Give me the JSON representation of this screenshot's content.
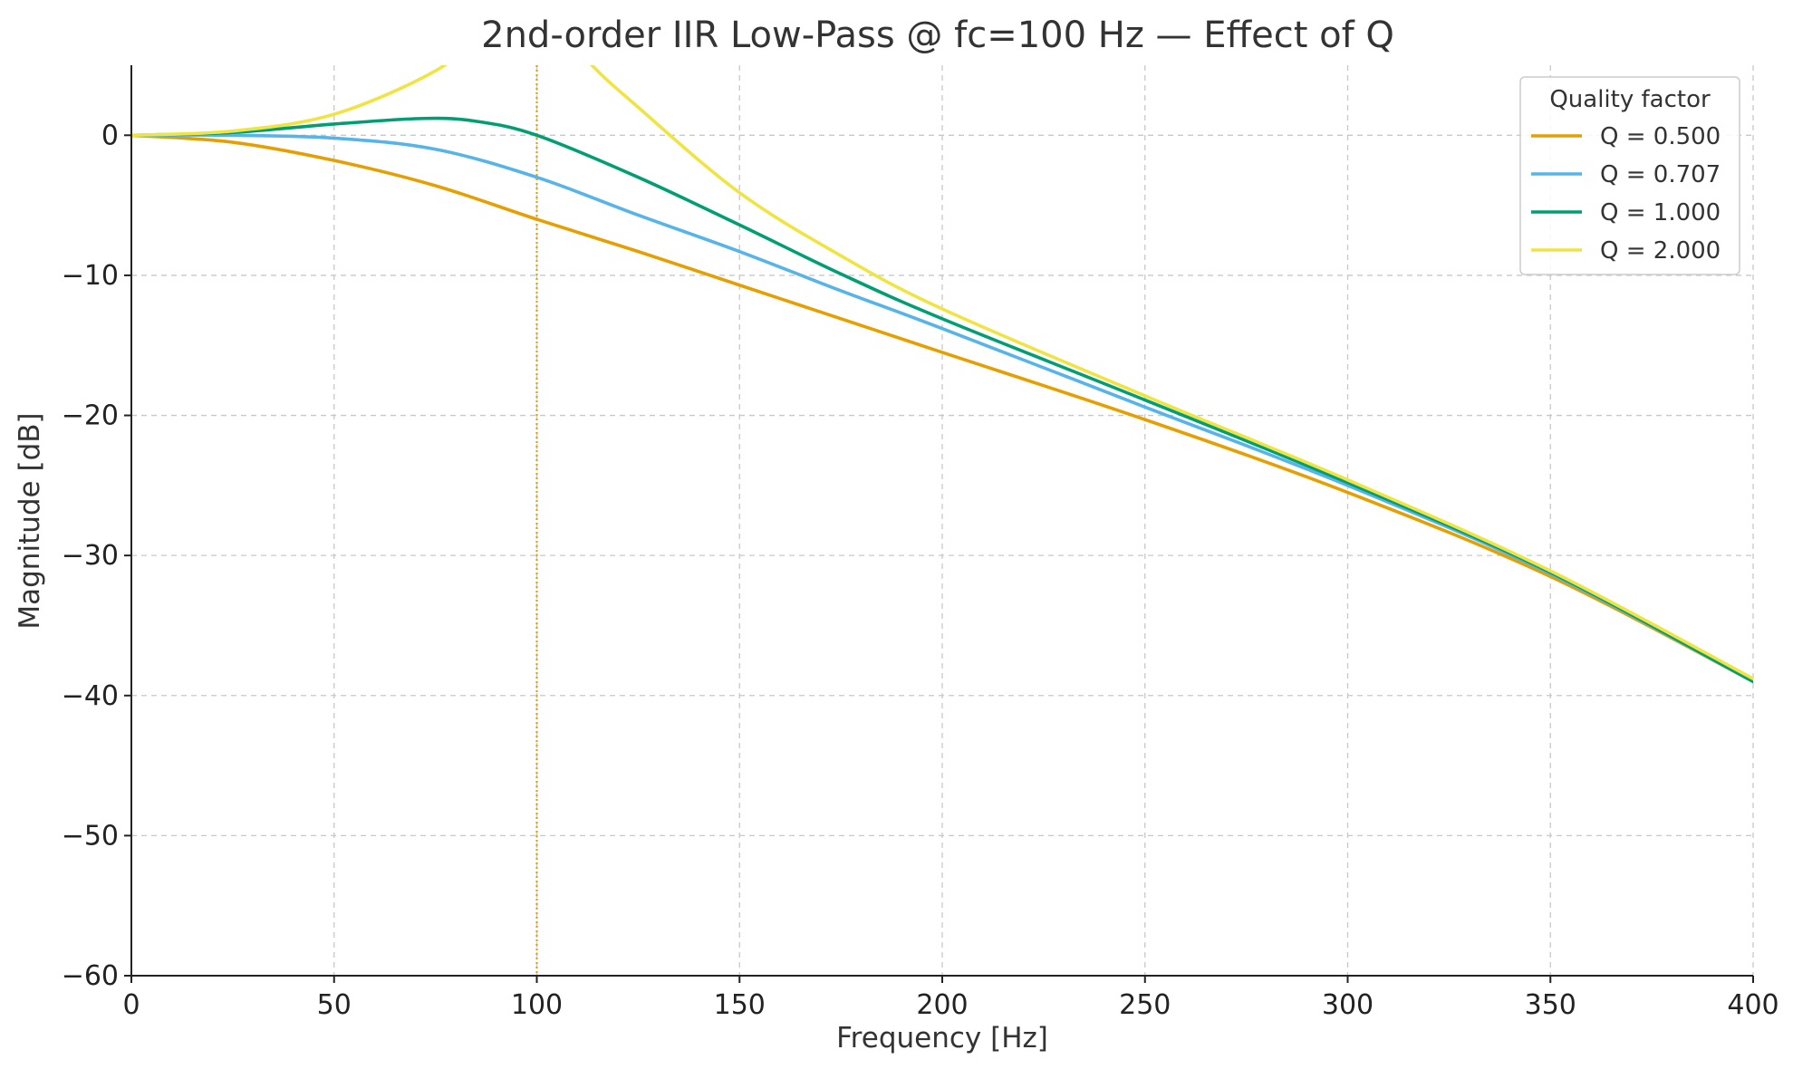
{
  "chart_data": {
    "type": "line",
    "title": "2nd-order IIR Low-Pass @ fc=100 Hz — Effect of Q",
    "xlabel": "Frequency [Hz]",
    "ylabel": "Magnitude [dB]",
    "xlim": [
      0,
      400
    ],
    "ylim": [
      -60,
      5
    ],
    "x_ticks": [
      0,
      50,
      100,
      150,
      200,
      250,
      300,
      350,
      400
    ],
    "y_ticks": [
      0,
      -10,
      -20,
      -30,
      -40,
      -50,
      -60
    ],
    "x_tick_labels": [
      "0",
      "50",
      "100",
      "150",
      "200",
      "250",
      "300",
      "350",
      "400"
    ],
    "y_tick_labels": [
      "0",
      "−10",
      "−20",
      "−30",
      "−40",
      "−50",
      "−60"
    ],
    "grid": true,
    "cutoff_marker": {
      "x": 100,
      "color": "#E69F00",
      "style": "dotted"
    },
    "legend": {
      "title": "Quality factor",
      "placement": "top-right"
    },
    "series": [
      {
        "name": "Q = 0.500",
        "color": "#E69F00",
        "x": [
          0,
          25,
          50,
          75,
          100,
          125,
          150,
          175,
          200,
          250,
          300,
          350,
          400
        ],
        "values": [
          0,
          -0.5,
          -1.8,
          -3.6,
          -6.0,
          -8.3,
          -10.7,
          -13.1,
          -15.5,
          -20.3,
          -25.5,
          -31.5,
          -39.0
        ]
      },
      {
        "name": "Q = 0.707",
        "color": "#56B4E9",
        "x": [
          0,
          25,
          50,
          75,
          100,
          125,
          150,
          175,
          200,
          250,
          300,
          350,
          400
        ],
        "values": [
          0,
          0,
          -0.2,
          -1.0,
          -3.0,
          -5.7,
          -8.3,
          -11.1,
          -13.8,
          -19.4,
          -25.0,
          -31.3,
          -39.0
        ]
      },
      {
        "name": "Q = 1.000",
        "color": "#009E73",
        "x": [
          0,
          25,
          50,
          72,
          85,
          100,
          125,
          150,
          175,
          200,
          250,
          300,
          350,
          400
        ],
        "values": [
          0,
          0.2,
          0.8,
          1.2,
          1.0,
          0,
          -3.0,
          -6.4,
          -9.9,
          -13.1,
          -18.9,
          -24.8,
          -31.2,
          -39.0
        ]
      },
      {
        "name": "Q = 2.000",
        "color": "#F0E442",
        "x": [
          0,
          25,
          50,
          75,
          87,
          100,
          112,
          125,
          150,
          175,
          200,
          250,
          300,
          350,
          400
        ],
        "values": [
          0,
          0.3,
          1.5,
          4.6,
          7.5,
          10.0,
          5.5,
          2.0,
          -4.1,
          -8.6,
          -12.4,
          -18.6,
          -24.6,
          -31.1,
          -38.8
        ]
      }
    ]
  }
}
